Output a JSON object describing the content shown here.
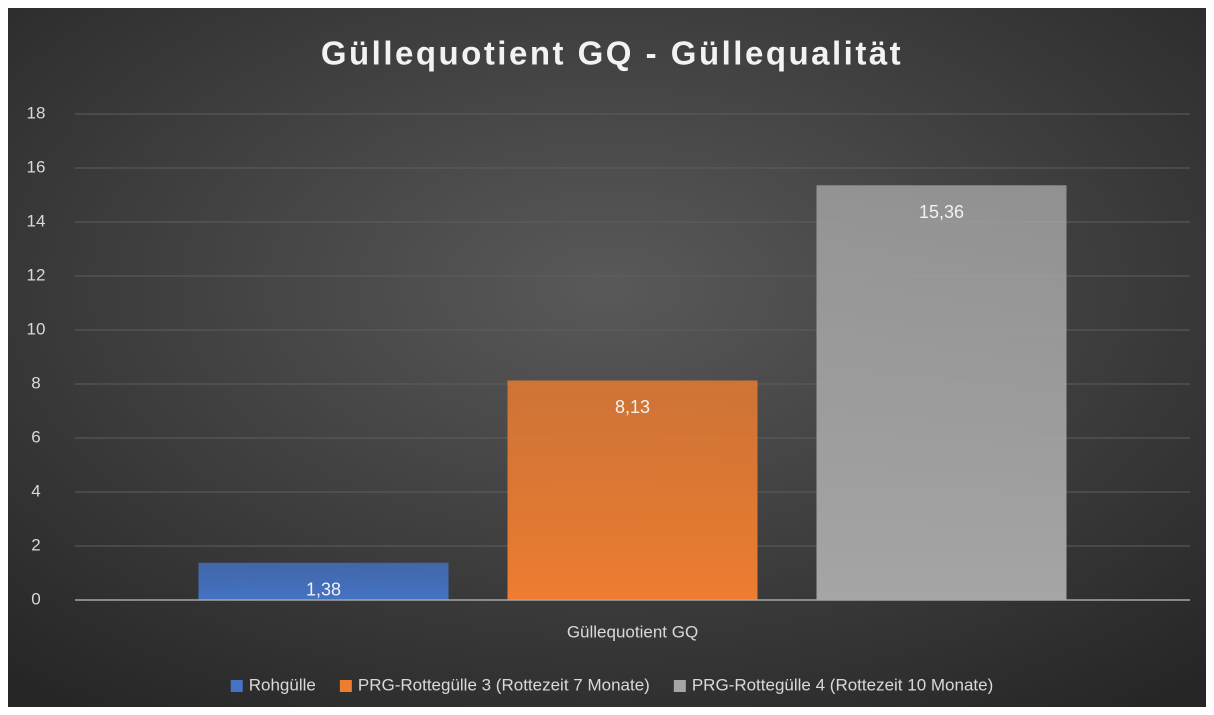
{
  "chart_data": {
    "type": "bar",
    "title": "Güllequotient GQ - Güllequalität",
    "categories": [
      "Güllequotient GQ"
    ],
    "series": [
      {
        "name": "Rohgülle",
        "color": "#4472c4",
        "values": [
          1.38
        ],
        "value_labels": [
          "1,38"
        ]
      },
      {
        "name": "PRG-Rottegülle 3 (Rottezeit 7 Monate)",
        "color": "#ed7d31",
        "values": [
          8.13
        ],
        "value_labels": [
          "8,13"
        ]
      },
      {
        "name": "PRG-Rottegülle 4 (Rottezeit 10 Monate)",
        "color": "#a5a5a5",
        "values": [
          15.36
        ],
        "value_labels": [
          "15,36"
        ]
      }
    ],
    "ylim": [
      0,
      18
    ],
    "yticks": [
      0,
      2,
      4,
      6,
      8,
      10,
      12,
      14,
      16,
      18
    ],
    "grid": true,
    "legend": "bottom"
  }
}
